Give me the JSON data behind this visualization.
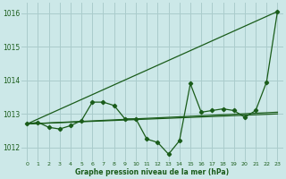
{
  "title": "Graphe pression niveau de la mer (hPa)",
  "background_color": "#cce8e8",
  "grid_color": "#aacccc",
  "line_color": "#1a5c1a",
  "xlim": [
    -0.5,
    23.5
  ],
  "ylim": [
    1011.6,
    1016.3
  ],
  "yticks": [
    1012,
    1013,
    1014,
    1015,
    1016
  ],
  "xticks": [
    0,
    1,
    2,
    3,
    4,
    5,
    6,
    7,
    8,
    9,
    10,
    11,
    12,
    13,
    14,
    15,
    16,
    17,
    18,
    19,
    20,
    21,
    22,
    23
  ],
  "main_x": [
    0,
    1,
    2,
    3,
    4,
    5,
    6,
    7,
    8,
    9,
    10,
    11,
    12,
    13,
    14,
    15,
    16,
    17,
    18,
    19,
    20,
    21,
    22,
    23
  ],
  "main_y": [
    1012.7,
    1012.75,
    1012.6,
    1012.55,
    1012.65,
    1012.8,
    1013.35,
    1013.35,
    1013.25,
    1012.85,
    1012.85,
    1012.25,
    1012.15,
    1011.8,
    1012.2,
    1013.9,
    1013.05,
    1013.1,
    1013.15,
    1013.1,
    1012.9,
    1013.1,
    1013.95,
    1016.05
  ],
  "trend1_x": [
    0,
    23
  ],
  "trend1_y": [
    1012.7,
    1016.05
  ],
  "trend2_x": [
    0,
    23
  ],
  "trend2_y": [
    1012.7,
    1013.05
  ],
  "trend3_x": [
    0,
    23
  ],
  "trend3_y": [
    1012.7,
    1013.0
  ]
}
